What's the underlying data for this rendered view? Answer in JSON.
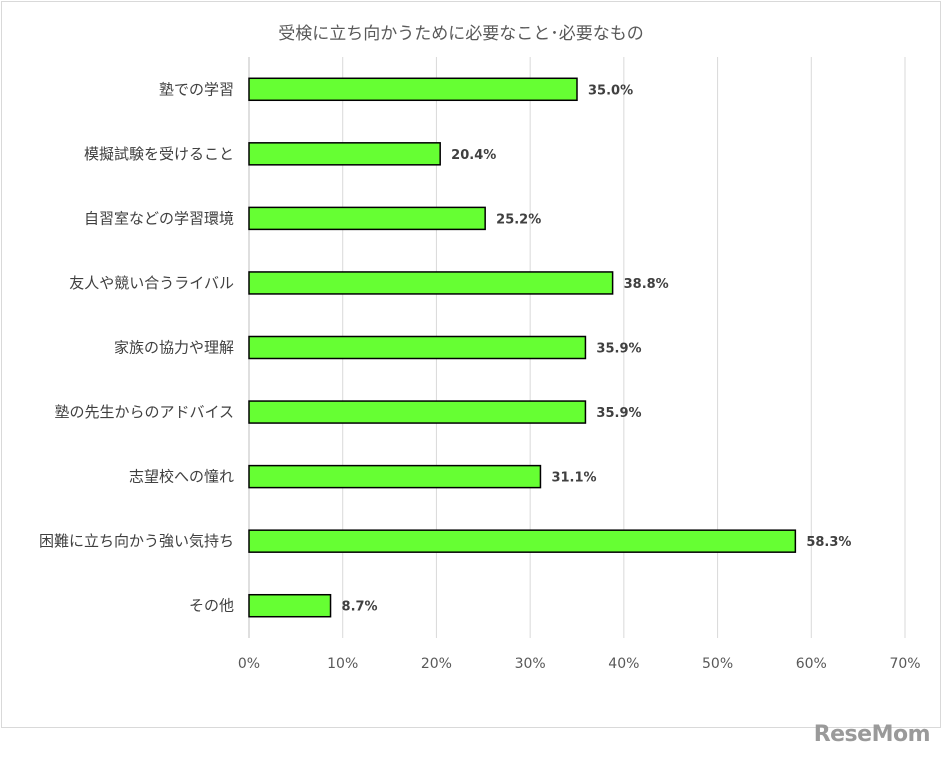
{
  "chart_data": {
    "type": "bar",
    "orientation": "horizontal",
    "title": "受検に立ち向かうために必要なこと･必要なもの",
    "categories": [
      "塾での学習",
      "模擬試験を受けること",
      "自習室などの学習環境",
      "友人や競い合うライバル",
      "家族の協力や理解",
      "塾の先生からのアドバイス",
      "志望校への憧れ",
      "困難に立ち向かう強い気持ち",
      "その他"
    ],
    "values": [
      35.0,
      20.4,
      25.2,
      38.8,
      35.9,
      35.9,
      31.1,
      58.3,
      8.7
    ],
    "value_labels": [
      "35.0%",
      "20.4%",
      "25.2%",
      "38.8%",
      "35.9%",
      "35.9%",
      "31.1%",
      "58.3%",
      "8.7%"
    ],
    "xticks": [
      "0%",
      "10%",
      "20%",
      "30%",
      "40%",
      "50%",
      "60%",
      "70%"
    ],
    "xlim": [
      0,
      70
    ],
    "grid": true,
    "bar_color": "#66ff33",
    "bar_edge_color": "#000000"
  },
  "watermark": "ReseMom"
}
